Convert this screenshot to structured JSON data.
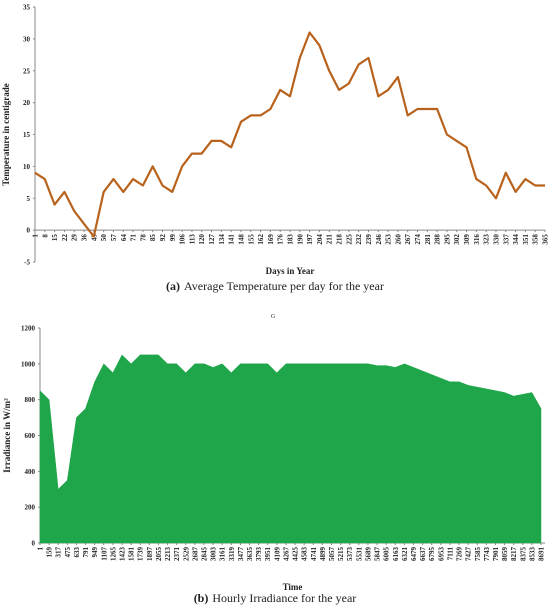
{
  "chart_data": [
    {
      "type": "line",
      "y_label": "Temperature in centigrade",
      "x_label": "Days in Year",
      "caption_label": "(a)",
      "caption": "Average Temperature per day for the year",
      "color": "#b8621c",
      "x": [
        1,
        8,
        15,
        22,
        29,
        36,
        43,
        50,
        57,
        64,
        71,
        78,
        85,
        92,
        99,
        106,
        113,
        120,
        127,
        134,
        141,
        148,
        155,
        162,
        169,
        176,
        183,
        190,
        197,
        204,
        211,
        218,
        225,
        232,
        239,
        246,
        253,
        260,
        267,
        274,
        281,
        288,
        295,
        302,
        309,
        316,
        323,
        330,
        337,
        344,
        351,
        358,
        365
      ],
      "values": [
        9,
        8,
        4,
        6,
        3,
        1,
        -1,
        6,
        8,
        6,
        8,
        7,
        10,
        7,
        6,
        10,
        12,
        12,
        14,
        14,
        13,
        17,
        18,
        18,
        19,
        22,
        21,
        27,
        31,
        29,
        25,
        22,
        23,
        26,
        27,
        21,
        22,
        24,
        18,
        19,
        19,
        19,
        15,
        14,
        13,
        8,
        7,
        5,
        9,
        6,
        8,
        7,
        7
      ],
      "xlim": [
        1,
        365
      ],
      "xticks": [
        1,
        8,
        15,
        22,
        29,
        36,
        43,
        50,
        57,
        64,
        71,
        78,
        85,
        92,
        99,
        106,
        113,
        120,
        127,
        134,
        141,
        148,
        155,
        162,
        169,
        176,
        183,
        190,
        197,
        204,
        211,
        218,
        225,
        232,
        239,
        246,
        253,
        260,
        267,
        274,
        281,
        288,
        295,
        302,
        309,
        316,
        323,
        330,
        337,
        344,
        351,
        358,
        365
      ],
      "ylim": [
        -5,
        35
      ],
      "yticks": [
        -5,
        0,
        5,
        10,
        15,
        20,
        25,
        30,
        35
      ]
    },
    {
      "type": "area",
      "y_label": "Irradiance in W/m²",
      "x_label": "Time",
      "caption_label": "(b)",
      "caption": "Hourly Irradiance for the year",
      "annotation": "G",
      "color": "#1fa64a",
      "x": [
        1,
        159,
        317,
        475,
        633,
        791,
        949,
        1107,
        1265,
        1423,
        1581,
        1739,
        1897,
        2055,
        2213,
        2371,
        2529,
        2687,
        2845,
        3003,
        3161,
        3319,
        3477,
        3635,
        3793,
        3951,
        4109,
        4267,
        4425,
        4583,
        4741,
        4899,
        5057,
        5215,
        5373,
        5531,
        5689,
        5847,
        6005,
        6163,
        6321,
        6479,
        6637,
        6795,
        6953,
        7111,
        7269,
        7427,
        7585,
        7743,
        7901,
        8059,
        8217,
        8375,
        8533,
        8691
      ],
      "values": [
        850,
        800,
        300,
        350,
        700,
        750,
        900,
        1000,
        950,
        1050,
        1000,
        1050,
        1050,
        1050,
        1000,
        1000,
        950,
        1000,
        1000,
        980,
        1000,
        950,
        1000,
        1000,
        1000,
        1000,
        950,
        1000,
        1000,
        1000,
        1000,
        1000,
        1000,
        1000,
        1000,
        1000,
        1000,
        990,
        990,
        980,
        1000,
        980,
        960,
        940,
        920,
        900,
        900,
        880,
        870,
        860,
        850,
        840,
        820,
        830,
        840,
        750
      ],
      "xlim": [
        1,
        8760
      ],
      "xticks": [
        1,
        159,
        317,
        475,
        633,
        791,
        949,
        1107,
        1265,
        1423,
        1581,
        1739,
        1897,
        2055,
        2213,
        2371,
        2529,
        2687,
        2845,
        3003,
        3161,
        3319,
        3477,
        3635,
        3793,
        3951,
        4109,
        4267,
        4425,
        4583,
        4741,
        4899,
        5057,
        5215,
        5373,
        5531,
        5689,
        5847,
        6005,
        6163,
        6321,
        6479,
        6637,
        6795,
        6953,
        7111,
        7269,
        7427,
        7585,
        7743,
        7901,
        8059,
        8217,
        8375,
        8533,
        8691
      ],
      "ylim": [
        0,
        1200
      ],
      "yticks": [
        0,
        200,
        400,
        600,
        800,
        1000,
        1200
      ]
    }
  ]
}
